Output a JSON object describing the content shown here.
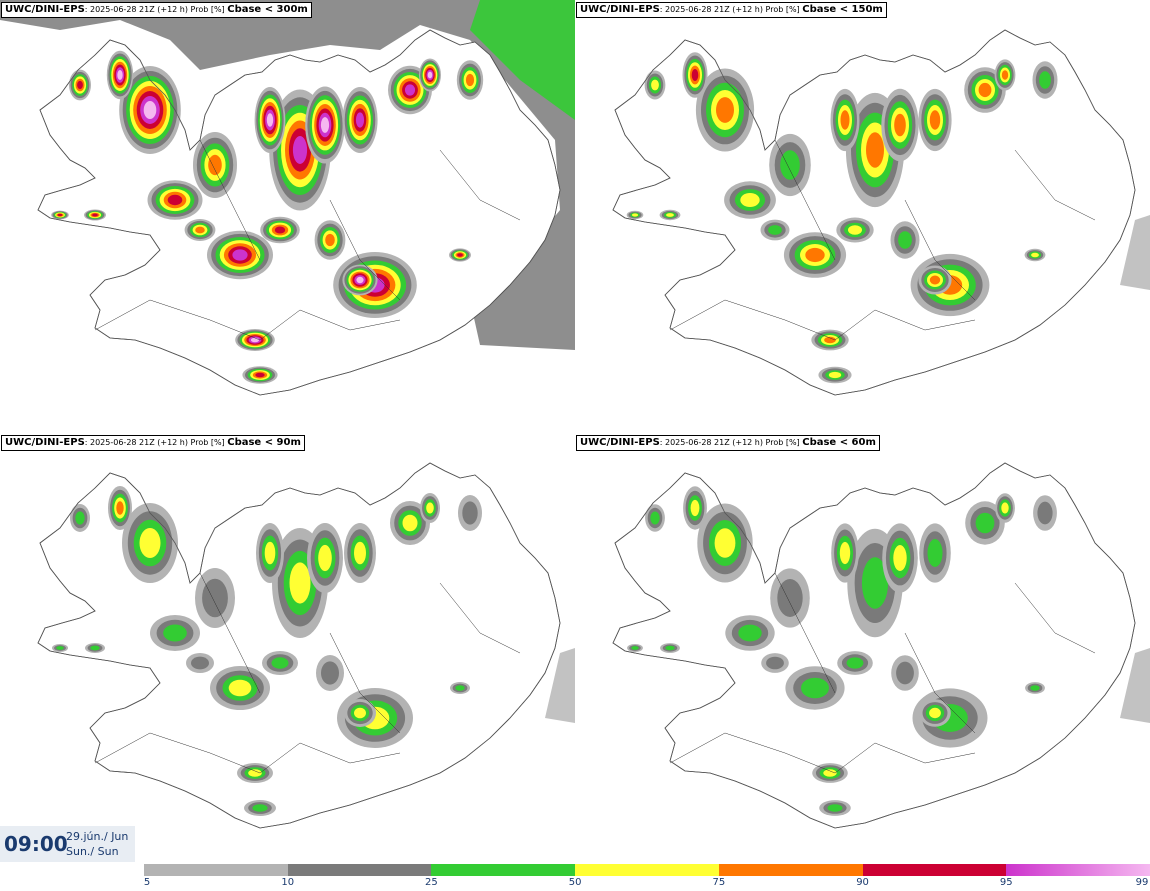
{
  "panels": [
    {
      "source": "UWC/DINI-EPS",
      "meta": ": 2025-06-28 21Z (+12 h) Prob [%] ",
      "threshold": "Cbase < 300m",
      "intensity": 1.0
    },
    {
      "source": "UWC/DINI-EPS",
      "meta": ": 2025-06-28 21Z (+12 h) Prob [%] ",
      "threshold": "Cbase < 150m",
      "intensity": 0.75
    },
    {
      "source": "UWC/DINI-EPS",
      "meta": ": 2025-06-28 21Z (+12 h) Prob [%] ",
      "threshold": "Cbase < 90m",
      "intensity": 0.6
    },
    {
      "source": "UWC/DINI-EPS",
      "meta": ": 2025-06-28 21Z (+12 h) Prob [%] ",
      "threshold": "Cbase < 60m",
      "intensity": 0.55
    }
  ],
  "time": {
    "clock": "09:00",
    "date_line1": "29.jún./ Jun",
    "date_line2": "Sun./ Sun"
  },
  "legend": {
    "ticks": [
      "5",
      "10",
      "25",
      "50",
      "75",
      "90",
      "95",
      "99"
    ],
    "colors": [
      "#b3b3b3",
      "#7a7a7a",
      "#33cc33",
      "#ffff33",
      "#ff7700",
      "#cc0033",
      "#cc33cc",
      "#f5b8f0"
    ]
  },
  "map_colors": {
    "land_outline": "#555555",
    "prob_5": "#b3b3b3",
    "prob_10": "#7a7a7a",
    "prob_25": "#33cc33",
    "prob_50": "#ffff33",
    "prob_75": "#ff7700",
    "prob_90": "#cc0033",
    "prob_95": "#cc33cc",
    "prob_99": "#f5b8f0"
  }
}
